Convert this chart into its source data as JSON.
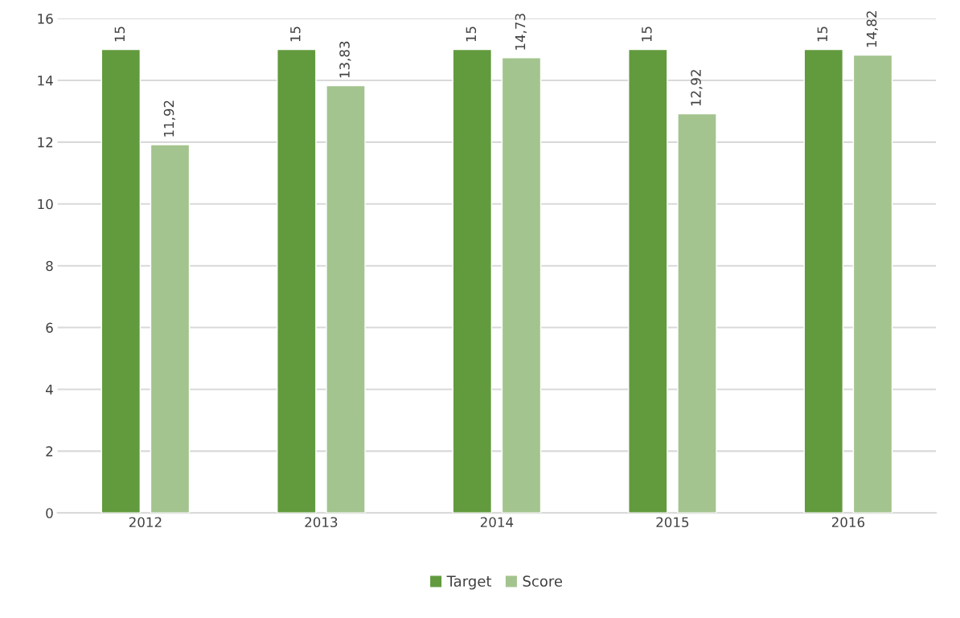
{
  "chart_data": {
    "type": "bar",
    "categories": [
      "2012",
      "2013",
      "2014",
      "2015",
      "2016"
    ],
    "series": [
      {
        "name": "Target",
        "color": "#629a3e",
        "values": [
          15,
          15,
          15,
          15,
          15
        ],
        "value_labels": [
          "15",
          "15",
          "15",
          "15",
          "15"
        ]
      },
      {
        "name": "Score",
        "color": "#a3c48e",
        "values": [
          11.92,
          13.83,
          14.73,
          12.92,
          14.82
        ],
        "value_labels": [
          "11,92",
          "13,83",
          "14,73",
          "12,92",
          "14,82"
        ]
      }
    ],
    "ylim": [
      0,
      16
    ],
    "yticks": [
      0,
      2,
      4,
      6,
      8,
      10,
      12,
      14,
      16
    ],
    "grid": "y",
    "legend": "bottom"
  }
}
